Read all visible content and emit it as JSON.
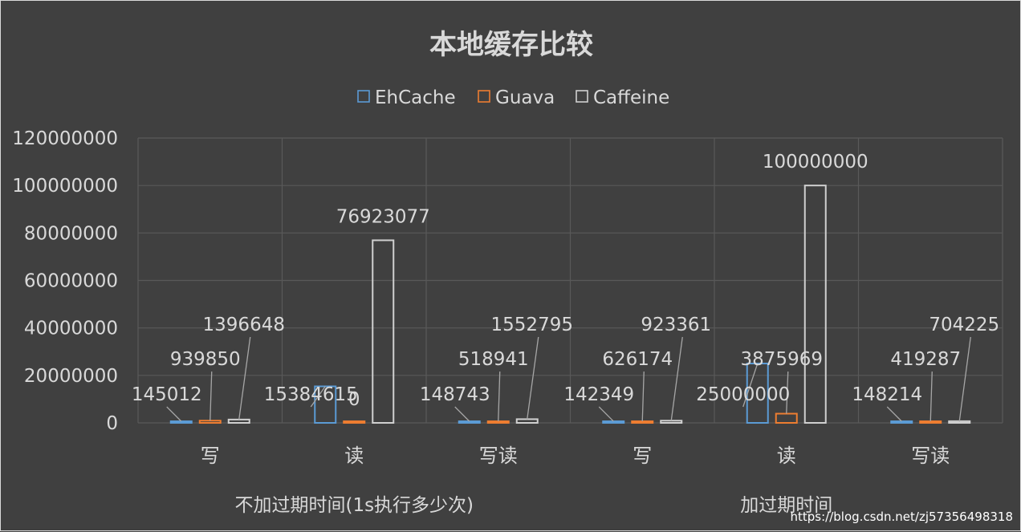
{
  "chart_data": {
    "type": "bar",
    "title": "本地缓存比较",
    "categories": [
      "写",
      "读",
      "写读",
      "写",
      "读",
      "写读"
    ],
    "groups": [
      {
        "label": "不加过期时间(1s执行多少次)",
        "span": [
          0,
          2
        ]
      },
      {
        "label": "加过期时间",
        "span": [
          3,
          5
        ]
      }
    ],
    "series": [
      {
        "name": "EhCache",
        "color": "#5b9bd5",
        "values": [
          145012,
          15384615,
          148743,
          142349,
          25000000,
          148214
        ]
      },
      {
        "name": "Guava",
        "color": "#ed7d31",
        "values": [
          939850,
          0,
          518941,
          626174,
          3875969,
          419287
        ]
      },
      {
        "name": "Caffeine",
        "color": "#d0d0d0",
        "values": [
          1396648,
          76923077,
          1552795,
          923361,
          100000000,
          704225
        ]
      }
    ],
    "ylim": [
      0,
      120000000
    ],
    "yticks": [
      "0",
      "20000000",
      "40000000",
      "60000000",
      "80000000",
      "100000000",
      "120000000"
    ],
    "grid": true,
    "legend_position": "top"
  },
  "watermark": "https://blog.csdn.net/zj57356498318"
}
